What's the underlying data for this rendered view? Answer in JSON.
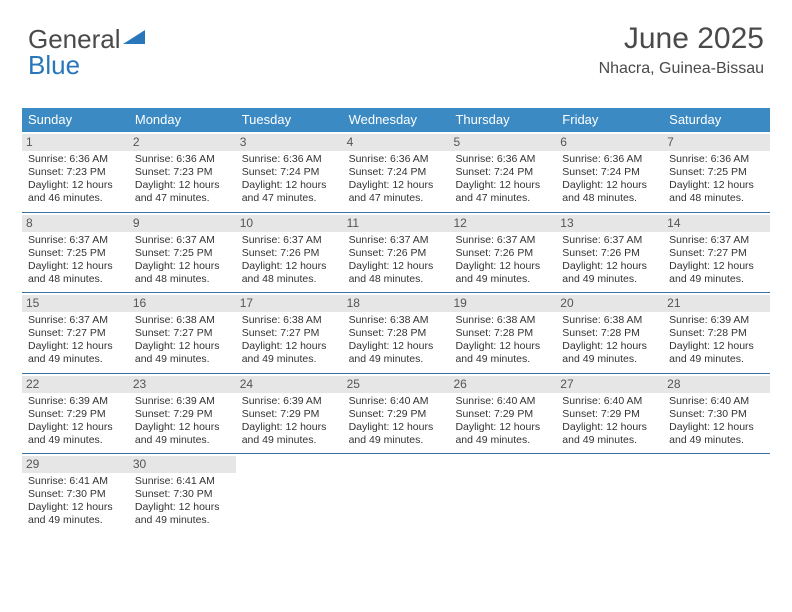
{
  "logo": {
    "text_line1": "General",
    "text_line2_prefix": "",
    "text_blue": "Blue",
    "triangle_color": "#2976bb",
    "text_color_gray": "#4a4a4a"
  },
  "header": {
    "month_title": "June 2025",
    "location": "Nhacra, Guinea-Bissau"
  },
  "colors": {
    "header_bar": "#3b8ac4",
    "week_divider": "#3b6fa0",
    "daynum_bg": "#e6e6e6",
    "daynum_text": "#555555",
    "body_text": "#333333",
    "page_bg": "#ffffff"
  },
  "typography": {
    "month_title_fontsize": 30,
    "location_fontsize": 16,
    "dow_fontsize": 13,
    "daynum_fontsize": 12,
    "body_fontsize": 10.5,
    "logo_fontsize": 26
  },
  "days_of_week": [
    "Sunday",
    "Monday",
    "Tuesday",
    "Wednesday",
    "Thursday",
    "Friday",
    "Saturday"
  ],
  "weeks": [
    [
      {
        "num": "1",
        "sunrise": "Sunrise: 6:36 AM",
        "sunset": "Sunset: 7:23 PM",
        "daylight": "Daylight: 12 hours and 46 minutes."
      },
      {
        "num": "2",
        "sunrise": "Sunrise: 6:36 AM",
        "sunset": "Sunset: 7:23 PM",
        "daylight": "Daylight: 12 hours and 47 minutes."
      },
      {
        "num": "3",
        "sunrise": "Sunrise: 6:36 AM",
        "sunset": "Sunset: 7:24 PM",
        "daylight": "Daylight: 12 hours and 47 minutes."
      },
      {
        "num": "4",
        "sunrise": "Sunrise: 6:36 AM",
        "sunset": "Sunset: 7:24 PM",
        "daylight": "Daylight: 12 hours and 47 minutes."
      },
      {
        "num": "5",
        "sunrise": "Sunrise: 6:36 AM",
        "sunset": "Sunset: 7:24 PM",
        "daylight": "Daylight: 12 hours and 47 minutes."
      },
      {
        "num": "6",
        "sunrise": "Sunrise: 6:36 AM",
        "sunset": "Sunset: 7:24 PM",
        "daylight": "Daylight: 12 hours and 48 minutes."
      },
      {
        "num": "7",
        "sunrise": "Sunrise: 6:36 AM",
        "sunset": "Sunset: 7:25 PM",
        "daylight": "Daylight: 12 hours and 48 minutes."
      }
    ],
    [
      {
        "num": "8",
        "sunrise": "Sunrise: 6:37 AM",
        "sunset": "Sunset: 7:25 PM",
        "daylight": "Daylight: 12 hours and 48 minutes."
      },
      {
        "num": "9",
        "sunrise": "Sunrise: 6:37 AM",
        "sunset": "Sunset: 7:25 PM",
        "daylight": "Daylight: 12 hours and 48 minutes."
      },
      {
        "num": "10",
        "sunrise": "Sunrise: 6:37 AM",
        "sunset": "Sunset: 7:26 PM",
        "daylight": "Daylight: 12 hours and 48 minutes."
      },
      {
        "num": "11",
        "sunrise": "Sunrise: 6:37 AM",
        "sunset": "Sunset: 7:26 PM",
        "daylight": "Daylight: 12 hours and 48 minutes."
      },
      {
        "num": "12",
        "sunrise": "Sunrise: 6:37 AM",
        "sunset": "Sunset: 7:26 PM",
        "daylight": "Daylight: 12 hours and 49 minutes."
      },
      {
        "num": "13",
        "sunrise": "Sunrise: 6:37 AM",
        "sunset": "Sunset: 7:26 PM",
        "daylight": "Daylight: 12 hours and 49 minutes."
      },
      {
        "num": "14",
        "sunrise": "Sunrise: 6:37 AM",
        "sunset": "Sunset: 7:27 PM",
        "daylight": "Daylight: 12 hours and 49 minutes."
      }
    ],
    [
      {
        "num": "15",
        "sunrise": "Sunrise: 6:37 AM",
        "sunset": "Sunset: 7:27 PM",
        "daylight": "Daylight: 12 hours and 49 minutes."
      },
      {
        "num": "16",
        "sunrise": "Sunrise: 6:38 AM",
        "sunset": "Sunset: 7:27 PM",
        "daylight": "Daylight: 12 hours and 49 minutes."
      },
      {
        "num": "17",
        "sunrise": "Sunrise: 6:38 AM",
        "sunset": "Sunset: 7:27 PM",
        "daylight": "Daylight: 12 hours and 49 minutes."
      },
      {
        "num": "18",
        "sunrise": "Sunrise: 6:38 AM",
        "sunset": "Sunset: 7:28 PM",
        "daylight": "Daylight: 12 hours and 49 minutes."
      },
      {
        "num": "19",
        "sunrise": "Sunrise: 6:38 AM",
        "sunset": "Sunset: 7:28 PM",
        "daylight": "Daylight: 12 hours and 49 minutes."
      },
      {
        "num": "20",
        "sunrise": "Sunrise: 6:38 AM",
        "sunset": "Sunset: 7:28 PM",
        "daylight": "Daylight: 12 hours and 49 minutes."
      },
      {
        "num": "21",
        "sunrise": "Sunrise: 6:39 AM",
        "sunset": "Sunset: 7:28 PM",
        "daylight": "Daylight: 12 hours and 49 minutes."
      }
    ],
    [
      {
        "num": "22",
        "sunrise": "Sunrise: 6:39 AM",
        "sunset": "Sunset: 7:29 PM",
        "daylight": "Daylight: 12 hours and 49 minutes."
      },
      {
        "num": "23",
        "sunrise": "Sunrise: 6:39 AM",
        "sunset": "Sunset: 7:29 PM",
        "daylight": "Daylight: 12 hours and 49 minutes."
      },
      {
        "num": "24",
        "sunrise": "Sunrise: 6:39 AM",
        "sunset": "Sunset: 7:29 PM",
        "daylight": "Daylight: 12 hours and 49 minutes."
      },
      {
        "num": "25",
        "sunrise": "Sunrise: 6:40 AM",
        "sunset": "Sunset: 7:29 PM",
        "daylight": "Daylight: 12 hours and 49 minutes."
      },
      {
        "num": "26",
        "sunrise": "Sunrise: 6:40 AM",
        "sunset": "Sunset: 7:29 PM",
        "daylight": "Daylight: 12 hours and 49 minutes."
      },
      {
        "num": "27",
        "sunrise": "Sunrise: 6:40 AM",
        "sunset": "Sunset: 7:29 PM",
        "daylight": "Daylight: 12 hours and 49 minutes."
      },
      {
        "num": "28",
        "sunrise": "Sunrise: 6:40 AM",
        "sunset": "Sunset: 7:30 PM",
        "daylight": "Daylight: 12 hours and 49 minutes."
      }
    ],
    [
      {
        "num": "29",
        "sunrise": "Sunrise: 6:41 AM",
        "sunset": "Sunset: 7:30 PM",
        "daylight": "Daylight: 12 hours and 49 minutes."
      },
      {
        "num": "30",
        "sunrise": "Sunrise: 6:41 AM",
        "sunset": "Sunset: 7:30 PM",
        "daylight": "Daylight: 12 hours and 49 minutes."
      },
      null,
      null,
      null,
      null,
      null
    ]
  ]
}
